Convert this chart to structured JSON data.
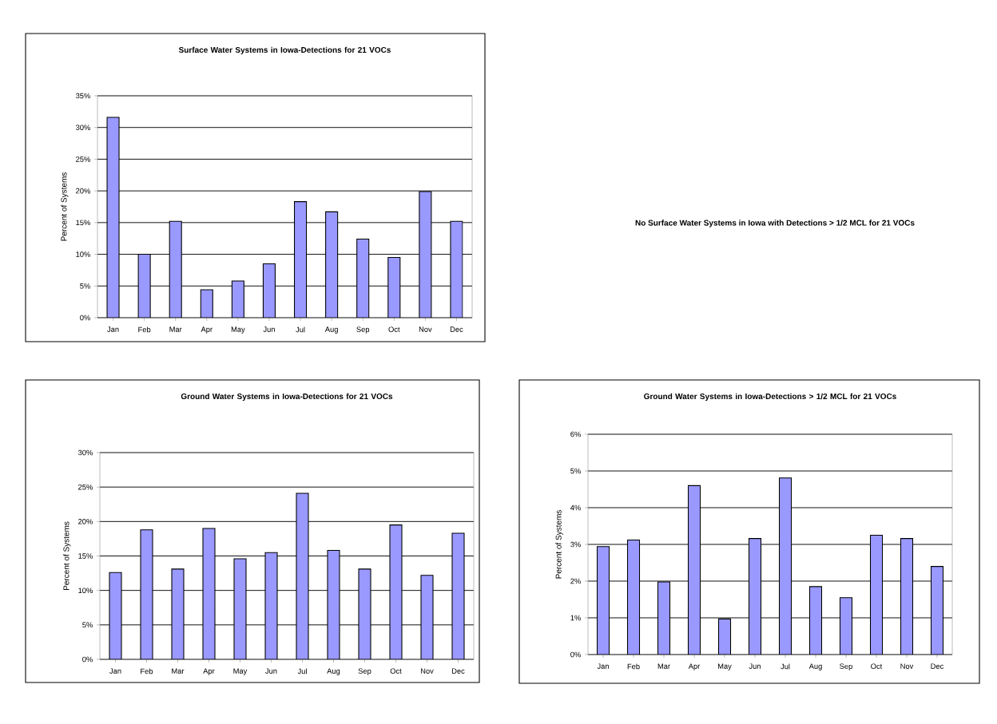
{
  "chart_data": [
    {
      "type": "bar",
      "title": "Surface Water Systems in Iowa-Detections for 21 VOCs",
      "ylabel": "Percent of Systems",
      "categories": [
        "Jan",
        "Feb",
        "Mar",
        "Apr",
        "May",
        "Jun",
        "Jul",
        "Aug",
        "Sep",
        "Oct",
        "Nov",
        "Dec"
      ],
      "values": [
        31.6,
        10,
        15.2,
        4.4,
        5.8,
        8.5,
        18.3,
        16.7,
        12.4,
        9.5,
        19.9,
        15.2
      ],
      "color": "#9999ff",
      "ylim": [
        0,
        35
      ],
      "yticks": [
        {
          "value": 0,
          "label": "0%"
        },
        {
          "value": 5,
          "label": "5%"
        },
        {
          "value": 10,
          "label": "10%"
        },
        {
          "value": 15,
          "label": "15%"
        },
        {
          "value": 20,
          "label": "20%"
        },
        {
          "value": 25,
          "label": "25%"
        },
        {
          "value": 30,
          "label": "30%"
        },
        {
          "value": 35,
          "label": "35%"
        }
      ],
      "grid": "y"
    },
    {
      "type": "other",
      "title": "No Surface Water Systems in Iowa with Detections > 1/2 MCL for 21 VOCs"
    },
    {
      "type": "bar",
      "title": "Ground Water Systems in Iowa-Detections for 21 VOCs",
      "ylabel": "Percent of Systems",
      "categories": [
        "Jan",
        "Feb",
        "Mar",
        "Apr",
        "May",
        "Jun",
        "Jul",
        "Aug",
        "Sep",
        "Oct",
        "Nov",
        "Dec"
      ],
      "values": [
        12.6,
        18.8,
        13.1,
        19,
        14.6,
        15.5,
        24.1,
        15.8,
        13.1,
        19.5,
        12.2,
        18.3
      ],
      "color": "#9999ff",
      "ylim": [
        0,
        30
      ],
      "yticks": [
        {
          "value": 0,
          "label": "0%"
        },
        {
          "value": 5,
          "label": "5%"
        },
        {
          "value": 10,
          "label": "10%"
        },
        {
          "value": 15,
          "label": "15%"
        },
        {
          "value": 20,
          "label": "20%"
        },
        {
          "value": 25,
          "label": "25%"
        },
        {
          "value": 30,
          "label": "30%"
        }
      ],
      "grid": "y"
    },
    {
      "type": "bar",
      "title": "Ground Water Systems in Iowa-Detections > 1/2 MCL for 21 VOCs",
      "ylabel": "Percent of Systems",
      "categories": [
        "Jan",
        "Feb",
        "Mar",
        "Apr",
        "May",
        "Jun",
        "Jul",
        "Aug",
        "Sep",
        "Oct",
        "Nov",
        "Dec"
      ],
      "values": [
        2.94,
        3.12,
        1.98,
        4.6,
        0.97,
        3.16,
        4.81,
        1.85,
        1.55,
        3.25,
        3.16,
        2.4
      ],
      "color": "#9999ff",
      "ylim": [
        0,
        6
      ],
      "yticks": [
        {
          "value": 0,
          "label": "0%"
        },
        {
          "value": 1,
          "label": "1%"
        },
        {
          "value": 2,
          "label": "2%"
        },
        {
          "value": 3,
          "label": "3%"
        },
        {
          "value": 4,
          "label": "4%"
        },
        {
          "value": 5,
          "label": "5%"
        },
        {
          "value": 6,
          "label": "6%"
        }
      ],
      "grid": "y"
    }
  ]
}
